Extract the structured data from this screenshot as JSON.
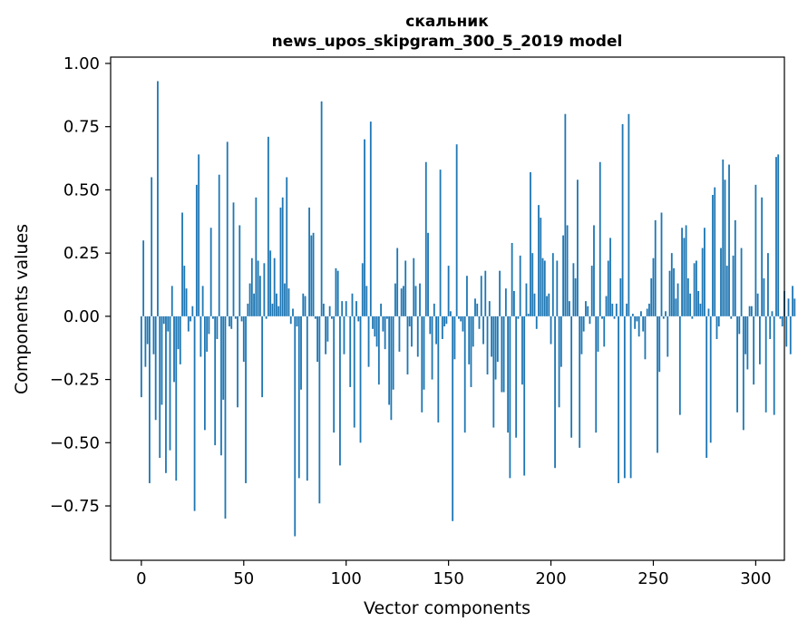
{
  "chart_data": {
    "type": "bar",
    "title": "скальник",
    "subtitle": "news_upos_skipgram_300_5_2019 model",
    "xlabel": "Vector components",
    "ylabel": "Components values",
    "xlim": [
      -15,
      314
    ],
    "ylim": [
      -0.965,
      1.025
    ],
    "xticks": [
      0,
      50,
      100,
      150,
      200,
      250,
      300
    ],
    "yticks": [
      -0.75,
      -0.5,
      -0.25,
      0.0,
      0.25,
      0.5,
      0.75,
      1.0
    ],
    "ytick_labels": [
      "−0.75",
      "−0.50",
      "−0.25",
      "0.00",
      "0.25",
      "0.50",
      "0.75",
      "1.00"
    ],
    "bar_color": "#1f77b4",
    "grid": false,
    "values": [
      -0.32,
      0.3,
      -0.2,
      -0.11,
      -0.66,
      0.55,
      -0.15,
      -0.41,
      0.93,
      -0.56,
      -0.35,
      -0.03,
      -0.62,
      -0.06,
      -0.53,
      0.12,
      -0.26,
      -0.65,
      -0.13,
      -0.19,
      0.41,
      0.2,
      0.11,
      -0.06,
      -0.02,
      0.04,
      -0.77,
      0.52,
      0.64,
      -0.16,
      0.12,
      -0.45,
      -0.14,
      -0.07,
      0.35,
      -0.01,
      -0.51,
      -0.09,
      0.56,
      -0.55,
      -0.33,
      -0.8,
      0.69,
      -0.04,
      -0.05,
      0.45,
      -0.01,
      -0.36,
      0.36,
      -0.02,
      -0.18,
      -0.66,
      0.05,
      0.13,
      0.23,
      0.09,
      0.47,
      0.22,
      0.16,
      -0.32,
      0.21,
      -0.01,
      0.71,
      0.26,
      0.05,
      0.23,
      0.09,
      0.04,
      0.43,
      0.47,
      0.13,
      0.55,
      0.11,
      -0.03,
      0.03,
      -0.87,
      -0.04,
      -0.64,
      -0.29,
      0.09,
      0.08,
      -0.65,
      0.43,
      0.32,
      0.33,
      -0.01,
      -0.18,
      -0.74,
      0.85,
      0.05,
      -0.15,
      -0.1,
      0.04,
      -0.01,
      -0.46,
      0.19,
      0.18,
      -0.59,
      0.06,
      -0.15,
      0.06,
      0.0,
      -0.28,
      0.09,
      -0.44,
      0.06,
      -0.02,
      -0.5,
      0.21,
      0.7,
      0.12,
      -0.2,
      0.77,
      -0.05,
      -0.08,
      -0.12,
      -0.27,
      0.05,
      -0.06,
      -0.13,
      -0.01,
      -0.35,
      -0.41,
      -0.29,
      0.13,
      0.27,
      -0.14,
      0.11,
      0.12,
      0.22,
      -0.23,
      -0.04,
      -0.12,
      0.23,
      0.12,
      -0.16,
      0.13,
      -0.38,
      -0.29,
      0.61,
      0.33,
      -0.07,
      -0.25,
      0.05,
      -0.11,
      -0.42,
      0.58,
      -0.09,
      -0.04,
      -0.03,
      0.2,
      0.02,
      -0.81,
      -0.17,
      0.68,
      -0.01,
      -0.02,
      -0.06,
      -0.46,
      0.16,
      -0.19,
      -0.28,
      -0.12,
      0.07,
      0.05,
      -0.05,
      0.16,
      -0.11,
      0.18,
      -0.23,
      0.06,
      -0.16,
      -0.44,
      -0.25,
      -0.18,
      0.18,
      -0.3,
      -0.3,
      0.11,
      -0.46,
      -0.64,
      0.29,
      0.1,
      -0.48,
      -0.01,
      0.24,
      -0.27,
      -0.63,
      0.13,
      0.01,
      0.57,
      0.25,
      0.09,
      -0.05,
      0.44,
      0.39,
      0.23,
      0.22,
      0.08,
      0.09,
      -0.11,
      0.25,
      -0.6,
      0.22,
      -0.36,
      -0.2,
      0.32,
      0.8,
      0.36,
      0.06,
      -0.48,
      0.21,
      0.15,
      0.54,
      -0.52,
      -0.15,
      -0.06,
      0.06,
      0.04,
      -0.03,
      0.2,
      0.36,
      -0.46,
      -0.14,
      0.61,
      -0.01,
      -0.12,
      0.08,
      0.22,
      0.31,
      0.05,
      -0.01,
      0.05,
      -0.66,
      0.15,
      0.76,
      -0.64,
      0.05,
      0.8,
      -0.64,
      0.01,
      -0.05,
      -0.02,
      -0.08,
      0.02,
      -0.06,
      -0.17,
      0.03,
      0.05,
      0.15,
      0.23,
      0.38,
      -0.54,
      -0.22,
      0.41,
      -0.01,
      0.02,
      -0.16,
      0.18,
      0.25,
      0.19,
      0.07,
      0.13,
      -0.39,
      0.35,
      0.31,
      0.36,
      0.15,
      0.09,
      -0.01,
      0.21,
      0.22,
      0.1,
      0.05,
      0.27,
      0.35,
      -0.56,
      0.03,
      -0.5,
      0.48,
      0.51,
      -0.09,
      -0.04,
      0.27,
      0.62,
      0.54,
      0.2,
      0.6,
      -0.01,
      0.24,
      0.38,
      -0.38,
      -0.07,
      0.27,
      -0.45,
      -0.15,
      -0.21,
      0.04,
      0.04,
      -0.27,
      0.52,
      0.09,
      -0.19,
      0.47,
      0.15,
      -0.38,
      0.25,
      -0.09,
      0.02,
      -0.39,
      0.63,
      0.64,
      -0.01,
      -0.04,
      0.1,
      -0.12,
      0.07,
      -0.15,
      0.12,
      0.07
    ]
  }
}
